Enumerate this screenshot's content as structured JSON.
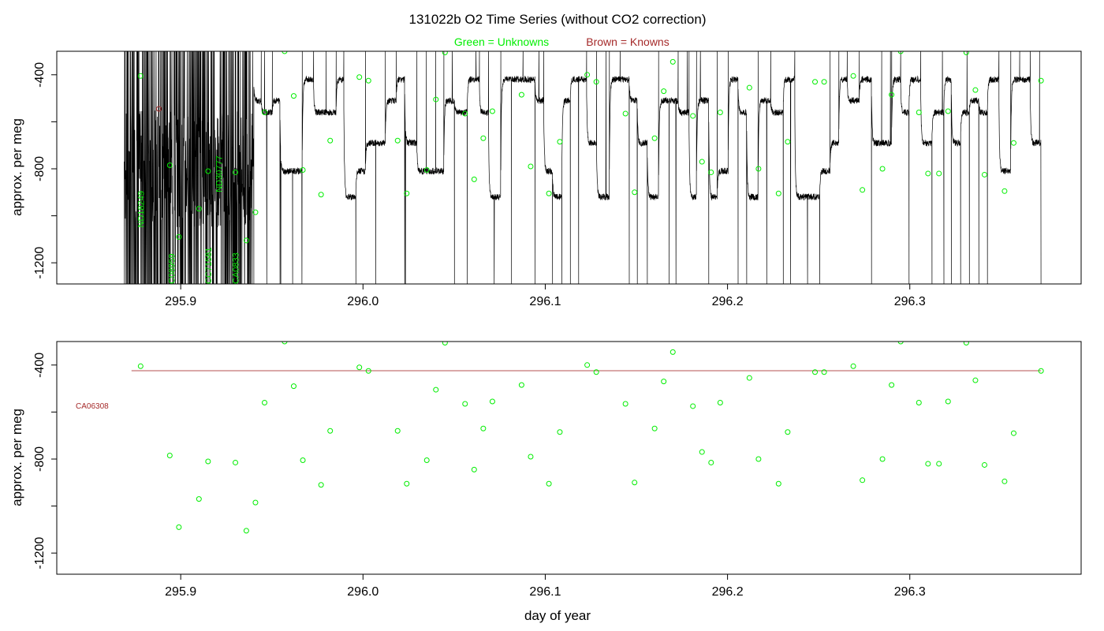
{
  "title": "131022b   O2 Time Series (without CO2 correction)",
  "legend": {
    "unknowns": "Green = Unknowns",
    "knowns": "Brown = Knowns"
  },
  "colors": {
    "unknown": "#00ee00",
    "known": "#a52a2a",
    "trace": "#000000",
    "refline": "#cd8c8c"
  },
  "chart_data": [
    {
      "type": "line",
      "xlabel": "",
      "ylabel": "approx. per meg",
      "xlim": [
        295.832,
        296.394
      ],
      "ylim": [
        -1290,
        -300
      ],
      "y_reversed": true,
      "x_ticks": [
        "295.9",
        "296.0",
        "296.1",
        "296.2",
        "296.3"
      ],
      "y_ticks": [
        "-400",
        "-800",
        "-1200"
      ],
      "y_ticks_minor": [
        "-600",
        "-1000"
      ],
      "trace": {
        "name": "O2 signal",
        "start": 295.869,
        "end": 296.372,
        "noisy_until": 295.94,
        "cycle_levels": [
          -420,
          -510,
          -560,
          -690,
          -810,
          -920
        ]
      },
      "vertical_labels": [
        {
          "text": "ND18249",
          "x": 295.878
        },
        {
          "text": "C08959",
          "x": 295.895
        },
        {
          "text": "CC71581",
          "x": 295.915
        },
        {
          "text": "ND30777",
          "x": 295.921
        },
        {
          "text": "CA0833",
          "x": 295.93
        }
      ],
      "known_points": [
        {
          "x": 295.888,
          "y": -545
        }
      ]
    },
    {
      "type": "scatter",
      "xlabel": "day of year",
      "ylabel": "approx. per meg",
      "xlim": [
        295.832,
        296.394
      ],
      "ylim": [
        -1290,
        -300
      ],
      "y_reversed": true,
      "x_ticks": [
        "295.9",
        "296.0",
        "296.1",
        "296.2",
        "296.3"
      ],
      "y_ticks": [
        "-400",
        "-800",
        "-1200"
      ],
      "y_ticks_minor": [
        "-600",
        "-1000"
      ],
      "reference": {
        "label": "CA06308",
        "y": -424,
        "x_start": 295.873,
        "x_end": 296.372
      },
      "series": [
        {
          "x": [
            295.878,
            295.894,
            295.899,
            295.91,
            295.915,
            295.93,
            295.936,
            295.941,
            295.946,
            295.957,
            295.962,
            295.967,
            295.977,
            295.982,
            295.998,
            296.003,
            296.019,
            296.024,
            296.035,
            296.04,
            296.045,
            296.056,
            296.061,
            296.066,
            296.071,
            296.087,
            296.092,
            296.102,
            296.108,
            296.123,
            296.128,
            296.144,
            296.149,
            296.16,
            296.165,
            296.17,
            296.181,
            296.186,
            296.191,
            296.196,
            296.207,
            296.212,
            296.217,
            296.228,
            296.233,
            296.248,
            296.253,
            296.269,
            296.274,
            296.285,
            296.29,
            296.295,
            296.305,
            296.31,
            296.316,
            296.321,
            296.331,
            296.336,
            296.341,
            296.352,
            296.357,
            296.372
          ],
          "y": [
            -405,
            -785,
            -1090,
            -970,
            -810,
            -815,
            -1105,
            -985,
            -560,
            -300,
            -490,
            -805,
            -910,
            -680,
            -410,
            -425,
            -680,
            -905,
            -805,
            -505,
            -305,
            -565,
            -845,
            -670,
            -555,
            -485,
            -790,
            -905,
            -685,
            -400,
            -430,
            -565,
            -900,
            -670,
            -470,
            -345,
            -575,
            -770,
            -815,
            -560,
            -290,
            -455,
            -800,
            -905,
            -685,
            -430,
            -430,
            -405,
            -890,
            -800,
            -485,
            -300,
            -560,
            -820,
            -820,
            -555,
            -305,
            -465,
            -825,
            -895,
            -690,
            -425
          ]
        }
      ]
    }
  ]
}
